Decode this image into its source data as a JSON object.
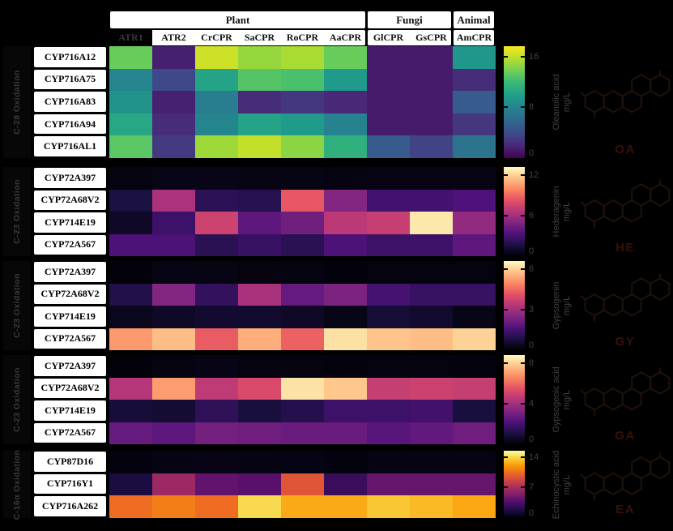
{
  "header": {
    "groups": [
      {
        "label": "Plant",
        "cols": 6
      },
      {
        "label": "Fungi",
        "cols": 2
      },
      {
        "label": "Animal",
        "cols": 1
      }
    ],
    "columns": [
      "ATR1",
      "ATR2",
      "CrCPR",
      "SaCPR",
      "RoCPR",
      "AaCPR",
      "GlCPR",
      "GsCPR",
      "AmCPR"
    ],
    "highlighted_column": "ATR1"
  },
  "colors": {
    "background": "#000000",
    "box_background": "#ffffff",
    "box_text": "#111111",
    "dim_text": "#414141",
    "highlight_column_bg": "#000000",
    "highlight_column_text": "#383838",
    "structure_label": "#331309"
  },
  "chart_data": [
    {
      "type": "heatmap",
      "section_label": "C-28 Oxidation",
      "colormap": "viridis",
      "columns": [
        "ATR1",
        "ATR2",
        "CrCPR",
        "SaCPR",
        "RoCPR",
        "AaCPR",
        "GlCPR",
        "GsCPR",
        "AmCPR"
      ],
      "rows": [
        "CYP716A12",
        "CYP716A75",
        "CYP716A83",
        "CYP716A94",
        "CYP716AL1"
      ],
      "values": [
        [
          13.5,
          1.5,
          16.3,
          14.8,
          15.3,
          13.5,
          1.3,
          1.3,
          9.2
        ],
        [
          8.0,
          3.8,
          10.2,
          12.8,
          12.5,
          9.5,
          1.3,
          1.3,
          2.2
        ],
        [
          9.0,
          1.6,
          7.5,
          2.2,
          2.8,
          2.0,
          1.3,
          1.3,
          5.0
        ],
        [
          10.5,
          2.2,
          8.0,
          10.2,
          9.5,
          7.8,
          1.3,
          1.3,
          2.8
        ],
        [
          13.0,
          3.0,
          15.0,
          16.0,
          14.5,
          11.2,
          5.0,
          3.5,
          6.8
        ]
      ],
      "colorbar": {
        "label": "Oleanolic acid",
        "unit": "mg/L",
        "ticks": [
          16,
          8,
          0
        ],
        "vmax": 17.6
      },
      "structure_abbr": "OA"
    },
    {
      "type": "heatmap",
      "section_label": "C-23 Oxidation",
      "colormap": "magma",
      "columns": [
        "ATR1",
        "ATR2",
        "CrCPR",
        "SaCPR",
        "RoCPR",
        "AaCPR",
        "GlCPR",
        "GsCPR",
        "AmCPR"
      ],
      "rows": [
        "CYP72A397",
        "CYP72A68V2",
        "CYP714E19",
        "CYP72A567"
      ],
      "values": [
        [
          0.3,
          0.5,
          0.5,
          0.4,
          0.4,
          0.3,
          0.4,
          0.4,
          0.4
        ],
        [
          1.6,
          6.3,
          2.2,
          2.0,
          8.5,
          5.0,
          2.9,
          2.9,
          3.3
        ],
        [
          0.9,
          2.7,
          7.4,
          3.8,
          4.4,
          6.8,
          7.2,
          12.6,
          5.5
        ],
        [
          3.2,
          3.2,
          2.1,
          2.6,
          2.1,
          3.2,
          2.7,
          2.7,
          3.8
        ]
      ],
      "colorbar": {
        "label": "Hederagenin",
        "unit": "mg/L",
        "ticks": [
          12,
          6,
          0
        ],
        "vmax": 13.2
      },
      "structure_abbr": "HE"
    },
    {
      "type": "heatmap",
      "section_label": "C-23 Oxidation",
      "colormap": "magma",
      "columns": [
        "ATR1",
        "ATR2",
        "CrCPR",
        "SaCPR",
        "RoCPR",
        "AaCPR",
        "GlCPR",
        "GsCPR",
        "AmCPR"
      ],
      "rows": [
        "CYP72A397",
        "CYP72A68V2",
        "CYP714E19",
        "CYP72A567"
      ],
      "values": [
        [
          0.1,
          0.2,
          0.2,
          0.15,
          0.15,
          0.1,
          0.15,
          0.15,
          0.15
        ],
        [
          0.9,
          2.5,
          1.2,
          3.1,
          2.0,
          2.4,
          1.5,
          1.3,
          1.3
        ],
        [
          0.3,
          0.45,
          0.55,
          0.55,
          0.45,
          0.25,
          0.65,
          0.55,
          0.25
        ],
        [
          5.2,
          5.7,
          4.3,
          5.5,
          4.4,
          6.2,
          5.8,
          5.7,
          6.0
        ]
      ],
      "colorbar": {
        "label": "Gypsogenin",
        "unit": "mg/L",
        "ticks": [
          6,
          3,
          0
        ],
        "vmax": 6.6
      },
      "structure_abbr": "GY"
    },
    {
      "type": "heatmap",
      "section_label": "C-23 Oxidation",
      "colormap": "magma",
      "columns": [
        "ATR1",
        "ATR2",
        "CrCPR",
        "SaCPR",
        "RoCPR",
        "AaCPR",
        "GlCPR",
        "GsCPR",
        "AmCPR"
      ],
      "rows": [
        "CYP72A397",
        "CYP72A68V2",
        "CYP714E19",
        "CYP72A567"
      ],
      "values": [
        [
          0.1,
          0.2,
          0.3,
          0.2,
          0.2,
          0.15,
          0.2,
          0.2,
          0.15
        ],
        [
          4.4,
          7.0,
          4.6,
          5.2,
          8.3,
          7.8,
          4.8,
          4.9,
          4.8
        ],
        [
          0.9,
          0.8,
          1.5,
          1.0,
          1.3,
          1.8,
          1.8,
          1.9,
          1.0
        ],
        [
          2.7,
          2.5,
          3.0,
          2.9,
          2.8,
          2.8,
          2.4,
          2.6,
          2.9
        ]
      ],
      "colorbar": {
        "label": "Gypsogenic acid",
        "unit": "mg/L",
        "ticks": [
          8,
          4,
          0
        ],
        "vmax": 8.8
      },
      "structure_abbr": "GA"
    },
    {
      "type": "heatmap",
      "section_label": "C-16α Oxidation",
      "colormap": "inferno",
      "columns": [
        "ATR1",
        "ATR2",
        "CrCPR",
        "SaCPR",
        "RoCPR",
        "AaCPR",
        "GlCPR",
        "GsCPR",
        "AmCPR"
      ],
      "rows": [
        "CYP87D16",
        "CYP716Y1",
        "CYP716A262"
      ],
      "values": [
        [
          0.3,
          0.4,
          0.5,
          0.4,
          0.4,
          0.3,
          0.4,
          0.4,
          0.4
        ],
        [
          1.7,
          6.5,
          4.3,
          3.9,
          9.4,
          2.8,
          4.4,
          4.4,
          4.4
        ],
        [
          10.4,
          11.0,
          10.4,
          14.0,
          12.5,
          12.5,
          13.4,
          13.0,
          12.4
        ]
      ],
      "colorbar": {
        "label": "Echinocystic acid",
        "unit": "mg/L",
        "ticks": [
          14,
          7,
          0
        ],
        "vmax": 15.4
      },
      "structure_abbr": "EA"
    }
  ]
}
